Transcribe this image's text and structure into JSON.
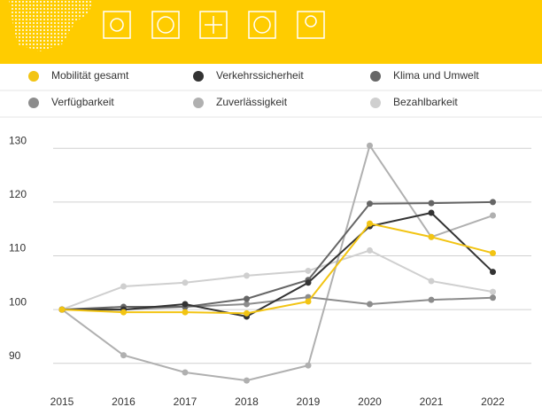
{
  "chart_data": {
    "type": "line",
    "x": [
      "2015",
      "2016",
      "2017",
      "2018",
      "2019",
      "2020",
      "2021",
      "2022"
    ],
    "series": [
      {
        "name": "Mobilität gesamt",
        "color": "#f2c413",
        "values": [
          100,
          99.5,
          99.5,
          99.3,
          101.5,
          116,
          113.5,
          110.5
        ]
      },
      {
        "name": "Verkehrssicherheit",
        "color": "#333333",
        "values": [
          100,
          100,
          101,
          98.7,
          105,
          115.5,
          118,
          107
        ]
      },
      {
        "name": "Klima und Umwelt",
        "color": "#666666",
        "values": [
          100,
          100.5,
          100.5,
          102,
          105.5,
          119.7,
          119.8,
          120
        ]
      },
      {
        "name": "Verfügbarkeit",
        "color": "#8c8c8c",
        "values": [
          100,
          100,
          100.5,
          101,
          102.3,
          101,
          101.8,
          102.2
        ]
      },
      {
        "name": "Zuverlässigkeit",
        "color": "#b0b0b0",
        "values": [
          100,
          91.5,
          88.3,
          86.8,
          89.6,
          130.5,
          113.5,
          117.5
        ]
      },
      {
        "name": "Bezahlbarkeit",
        "color": "#cfcfcf",
        "values": [
          100,
          104.3,
          105,
          106.3,
          107.2,
          111,
          105.3,
          103.3
        ]
      }
    ],
    "ylim": [
      85,
      134.5
    ],
    "yticks": [
      90,
      100,
      110,
      120,
      130
    ],
    "grid": true
  }
}
